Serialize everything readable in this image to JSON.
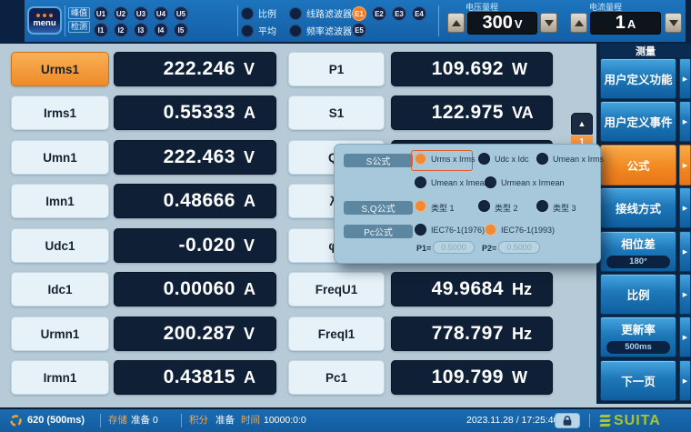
{
  "colors": {
    "accent_orange": "#f08a2e",
    "display_navy": "#0f2036",
    "topbar_blue": "#1d74bd",
    "sidebar_blue": "#1e77b8",
    "dialog_bg": "#a6c8da",
    "logo_green": "#a9c42e"
  },
  "top_bar": {
    "menu": "menu",
    "peak_detect": [
      "峰值",
      "检测"
    ],
    "u_channels": [
      "U1",
      "U2",
      "U3",
      "U4",
      "U5"
    ],
    "i_channels": [
      "I1",
      "I2",
      "I3",
      "I4",
      "I5"
    ],
    "mode_indicators": [
      {
        "label": "比例",
        "on": false
      },
      {
        "label": "平均",
        "on": false
      }
    ],
    "filter_indicators": [
      {
        "label": "线路滤波器",
        "on": false
      },
      {
        "label": "频率滤波器",
        "on": false
      }
    ],
    "e_channels": [
      {
        "label": "E1",
        "on": true
      },
      {
        "label": "E2",
        "on": false
      },
      {
        "label": "E3",
        "on": false
      },
      {
        "label": "E4",
        "on": false
      },
      {
        "label": "E5",
        "on": false
      }
    ],
    "voltage_range": {
      "label": "电压量程",
      "value": "300",
      "unit": "V"
    },
    "current_range": {
      "label": "电流量程",
      "value": "1",
      "unit": "A"
    }
  },
  "measurements": {
    "left": [
      {
        "name": "Urms1",
        "value": "222.246",
        "unit": "V",
        "selected": true
      },
      {
        "name": "Irms1",
        "value": "0.55333",
        "unit": "A"
      },
      {
        "name": "Umn1",
        "value": "222.463",
        "unit": "V"
      },
      {
        "name": "Imn1",
        "value": "0.48666",
        "unit": "A"
      },
      {
        "name": "Udc1",
        "value": "-0.020",
        "unit": "V"
      },
      {
        "name": "Idc1",
        "value": "0.00060",
        "unit": "A"
      },
      {
        "name": "Urmn1",
        "value": "200.287",
        "unit": "V"
      },
      {
        "name": "Irmn1",
        "value": "0.43815",
        "unit": "A"
      }
    ],
    "middle": [
      {
        "name": "P1",
        "value": "109.692",
        "unit": "W"
      },
      {
        "name": "S1",
        "value": "122.975",
        "unit": "VA"
      },
      {
        "name": "Q1",
        "value": "",
        "unit": ""
      },
      {
        "name": "λ1",
        "value": "",
        "unit": ""
      },
      {
        "name": "φ1",
        "value": "",
        "unit": ""
      },
      {
        "name": "FreqU1",
        "value": "49.9684",
        "unit": "Hz"
      },
      {
        "name": "FreqI1",
        "value": "778.797",
        "unit": "Hz"
      },
      {
        "name": "Pc1",
        "value": "109.799",
        "unit": "W"
      }
    ]
  },
  "page_scroll": {
    "page": "1"
  },
  "formula_dialog": {
    "groups": [
      {
        "pill": "S公式",
        "rows": [
          [
            {
              "label": "Urms x Irms",
              "selected": true,
              "boxed": true
            },
            {
              "label": "Udc x Idc"
            },
            {
              "label": "Umean x Irms"
            }
          ],
          [
            {
              "label": "Umean x Imean"
            },
            {
              "label": "Urmean x Irmean"
            }
          ]
        ]
      },
      {
        "pill": "S,Q公式",
        "rows": [
          [
            {
              "label": "类型 1",
              "selected": true
            },
            {
              "label": "类型 2"
            },
            {
              "label": "类型 3"
            }
          ]
        ]
      },
      {
        "pill": "Pc公式",
        "rows": [
          [
            {
              "label": "IEC76-1(1976)"
            },
            {
              "label": "IEC76-1(1993)",
              "selected": true
            }
          ]
        ]
      }
    ],
    "params": [
      {
        "label": "P1=",
        "value": "0.5000"
      },
      {
        "label": "P2=",
        "value": "0.5000"
      }
    ]
  },
  "sidebar": {
    "header": "测量",
    "items": [
      {
        "label": "用户定义功能"
      },
      {
        "label": "用户定义事件"
      },
      {
        "label": "公式",
        "selected": true
      },
      {
        "label": "接线方式"
      },
      {
        "label": "相位差",
        "badge": "180°"
      },
      {
        "label": "比例"
      },
      {
        "label": "更新率",
        "badge": "500ms"
      },
      {
        "label": "下一页"
      }
    ]
  },
  "bottom_bar": {
    "sample": "620 (500ms)",
    "storage_label": "存储",
    "storage_status": "准备",
    "storage_count": "0",
    "integration_label": "积分",
    "integration_status": "准备",
    "time_label": "时间",
    "time_value": "10000:0:0",
    "datetime": "2023.11.28 / 17:25:40",
    "brand": "SUITA"
  }
}
